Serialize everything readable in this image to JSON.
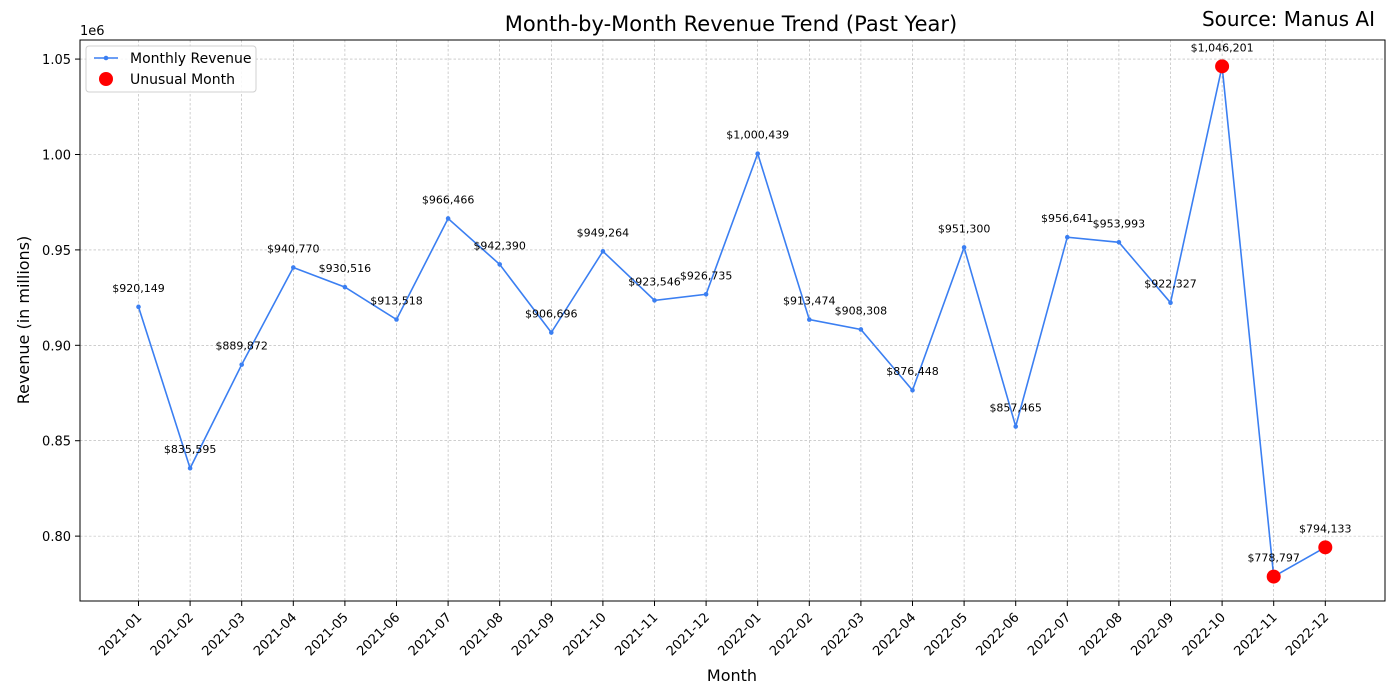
{
  "chart_data": {
    "type": "line",
    "title": "Month-by-Month Revenue Trend (Past Year)",
    "source": "Source: Manus AI",
    "xlabel": "Month",
    "ylabel": "Revenue (in millions)",
    "y_offset_label": "1e6",
    "ylim": [
      766000,
      1060000
    ],
    "yticks": [
      0.8,
      0.85,
      0.9,
      0.95,
      1.0,
      1.05
    ],
    "ytick_labels": [
      "0.80",
      "0.85",
      "0.90",
      "0.95",
      "1.00",
      "1.05"
    ],
    "grid": true,
    "legend_position": "top-left",
    "categories": [
      "2021-01",
      "2021-02",
      "2021-03",
      "2021-04",
      "2021-05",
      "2021-06",
      "2021-07",
      "2021-08",
      "2021-09",
      "2021-10",
      "2021-11",
      "2021-12",
      "2022-01",
      "2022-02",
      "2022-03",
      "2022-04",
      "2022-05",
      "2022-06",
      "2022-07",
      "2022-08",
      "2022-09",
      "2022-10",
      "2022-11",
      "2022-12"
    ],
    "series": [
      {
        "name": "Monthly Revenue",
        "color": "#3b7ff2",
        "values": [
          920149,
          835595,
          889872,
          940770,
          930516,
          913518,
          966466,
          942390,
          906696,
          949264,
          923546,
          926735,
          1000439,
          913474,
          908308,
          876448,
          951300,
          857465,
          956641,
          953993,
          922327,
          1046201,
          778797,
          794133
        ]
      }
    ],
    "data_labels": [
      "$920,149",
      "$835,595",
      "$889,872",
      "$940,770",
      "$930,516",
      "$913,518",
      "$966,466",
      "$942,390",
      "$906,696",
      "$949,264",
      "$923,546",
      "$926,735",
      "$1,000,439",
      "$913,474",
      "$908,308",
      "$876,448",
      "$951,300",
      "$857,465",
      "$956,641",
      "$953,993",
      "$922,327",
      "$1,046,201",
      "$778,797",
      "$794,133"
    ],
    "highlights": {
      "name": "Unusual Month",
      "color": "#ff0000",
      "categories": [
        "2022-10",
        "2022-11",
        "2022-12"
      ],
      "values": [
        1046201,
        778797,
        794133
      ]
    }
  }
}
